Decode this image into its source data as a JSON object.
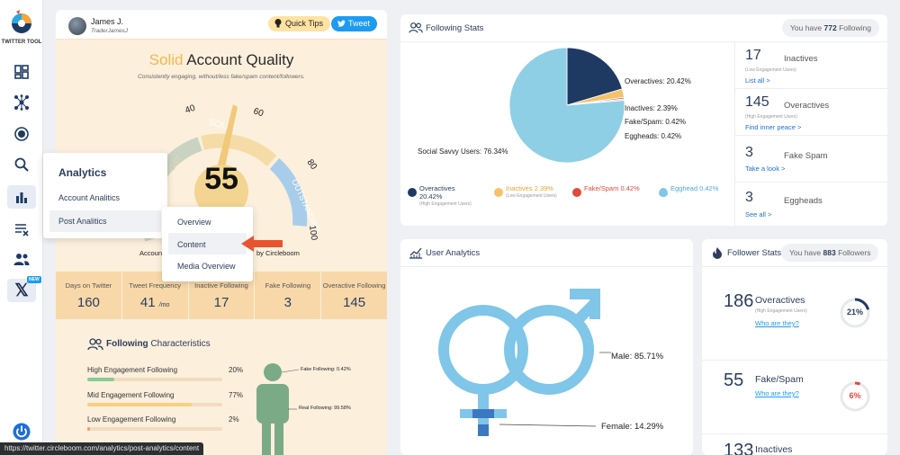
{
  "sidebar": {
    "logo_text": "TWITTER TOOL",
    "items": [
      "dashboard-icon",
      "network-icon",
      "target-icon",
      "search-icon",
      "analytics-icon",
      "clear-list-icon",
      "users-icon",
      "x-icon"
    ],
    "new_badge": "NEW"
  },
  "user": {
    "name": "James J.",
    "handle": "TraderJamesJ"
  },
  "buttons": {
    "quick_tips": "Quick Tips",
    "tweet": "Tweet"
  },
  "quality": {
    "word": "Solid",
    "rest": "Account Quality",
    "subtitle": "Consistently engaging, without/less fake/spam content/followers.",
    "score": "55",
    "gauge_ticks": [
      "40",
      "60",
      "80",
      "100"
    ],
    "gauge_bands": [
      "SOLID",
      "OUTSTANDING"
    ],
    "account_fragment": "Accoun",
    "by_fragment": "by Circleboom"
  },
  "stats_row": [
    {
      "label": "Days on Twitter",
      "value": "160",
      "unit": ""
    },
    {
      "label": "Tweet Frequency",
      "value": "41",
      "unit": "/mo"
    },
    {
      "label": "Inactive Following",
      "value": "17",
      "unit": ""
    },
    {
      "label": "Fake Following",
      "value": "3",
      "unit": ""
    },
    {
      "label": "Overactive Following",
      "value": "145",
      "unit": ""
    }
  ],
  "following_characteristics": {
    "title_bold": "Following",
    "title_rest": "Characteristics",
    "rows": [
      {
        "label": "High Engagement Following",
        "pct": "20%",
        "value": 20,
        "color": "#8bc89a"
      },
      {
        "label": "Mid Engagement Following",
        "pct": "77%",
        "value": 77,
        "color": "#f7cf85"
      },
      {
        "label": "Low Engagement Following",
        "pct": "2%",
        "value": 2,
        "color": "#f29a6b"
      }
    ],
    "fake_label": "Fake Following: 0.42%",
    "real_label": "Real Following: 99.58%"
  },
  "analytics_menu": {
    "header": "Analytics",
    "items": [
      "Account Analitics",
      "Post Analitics"
    ],
    "sub_items": [
      "Overview",
      "Content",
      "Media Overview"
    ]
  },
  "following_stats": {
    "title": "Following Stats",
    "you_have": "You have",
    "count": "772",
    "suffix": "Following",
    "pie_labels": {
      "overactives": "Overactives: 20.42%",
      "inactives": "Inactives: 2.39%",
      "fake": "Fake/Spam: 0.42%",
      "eggheads": "Eggheads: 0.42%",
      "social": "Social Savvy Users: 76.34%"
    },
    "legend": [
      {
        "label": "Overactives",
        "value": "20.42%",
        "sub": "(High Engagement Users)",
        "color": "#1e3a63"
      },
      {
        "label": "Inactives",
        "value": "2.39%",
        "sub": "(Low Engagement Users)",
        "color": "#f3c26b"
      },
      {
        "label": "Fake/Spam",
        "value": "0.42%",
        "sub": "",
        "color": "#e24a3b"
      },
      {
        "label": "Egghead",
        "value": "0.42%",
        "sub": "",
        "color": "#7fc6e8"
      }
    ],
    "cells": [
      {
        "num": "17",
        "name": "Inactives",
        "tag": "(Low Engagement Users)",
        "link": "List all >"
      },
      {
        "num": "145",
        "name": "Overactives",
        "tag": "(High Engagement Users)",
        "link": "Find inner peace >"
      },
      {
        "num": "3",
        "name": "Fake Spam",
        "tag": "",
        "link": "Take a look >"
      },
      {
        "num": "3",
        "name": "Eggheads",
        "tag": "",
        "link": "See all >"
      }
    ]
  },
  "chart_data": {
    "type": "pie",
    "categories": [
      "Overactives",
      "Inactives",
      "Fake/Spam",
      "Eggheads",
      "Social Savvy Users"
    ],
    "values": [
      20.42,
      2.39,
      0.42,
      0.42,
      76.34
    ],
    "colors": [
      "#1e3a63",
      "#f3c26b",
      "#e24a3b",
      "#c9d3df",
      "#8fcfe6"
    ]
  },
  "user_analytics": {
    "title": "User Analytics",
    "male": "Male: 85.71%",
    "female": "Female: 14.29%"
  },
  "follower_stats": {
    "title": "Follower Stats",
    "you_have": "You have",
    "count": "883",
    "suffix": "Followers",
    "cells": [
      {
        "num": "186",
        "name": "Overactives",
        "tag": "(High Engagement Users)",
        "link": "Who are they?",
        "pct": "21%",
        "value": 21,
        "color": "#1e3a63"
      },
      {
        "num": "55",
        "name": "Fake/Spam",
        "tag": "",
        "link": "Who are they?",
        "pct": "6%",
        "value": 6,
        "color": "#e24a3b"
      },
      {
        "num": "133",
        "name": "Inactives",
        "tag": "",
        "link": "",
        "pct": "",
        "value": 0,
        "color": "#f3c26b"
      }
    ]
  },
  "status_url": "https://twitter.circleboom.com/analytics/post-analytics/content"
}
